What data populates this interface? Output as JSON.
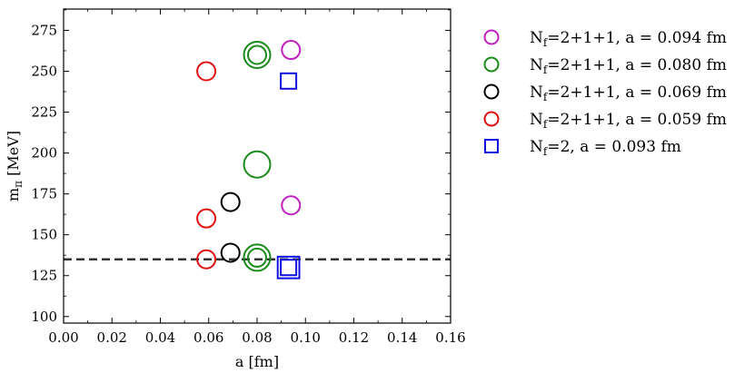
{
  "chart_data": {
    "type": "scatter",
    "xlabel": "a [fm]",
    "ylabel_main": "m",
    "ylabel_sub": "π",
    "ylabel_unit": " [MeV]",
    "xlim": [
      0.0,
      0.16
    ],
    "ylim": [
      96,
      288
    ],
    "x_ticks": [
      0.0,
      0.02,
      0.04,
      0.06,
      0.08,
      0.1,
      0.12,
      0.14,
      0.16
    ],
    "x_tick_labels": [
      "0.00",
      "0.02",
      "0.04",
      "0.06",
      "0.08",
      "0.10",
      "0.12",
      "0.14",
      "0.16"
    ],
    "y_ticks": [
      100,
      125,
      150,
      175,
      200,
      225,
      250,
      275
    ],
    "y_tick_labels": [
      "100",
      "125",
      "150",
      "175",
      "200",
      "225",
      "250",
      "275"
    ],
    "reference_line": {
      "y": 135,
      "style": "dashed",
      "color": "#333333"
    },
    "legend_placement": "right of plot",
    "series": [
      {
        "name": "N_f=2+1+1, a = 0.094 fm",
        "label_parts": [
          "N",
          "f",
          "=2+1+1, a = 0.094 fm"
        ],
        "marker": "circle",
        "color": "#c020c0",
        "points": [
          {
            "x": 0.094,
            "y": 263,
            "size": 1
          },
          {
            "x": 0.094,
            "y": 168,
            "size": 1
          }
        ]
      },
      {
        "name": "N_f=2+1+1, a = 0.080 fm",
        "label_parts": [
          "N",
          "f",
          "=2+1+1, a = 0.080 fm"
        ],
        "marker": "circle",
        "color": "#1a8a1a",
        "points": [
          {
            "x": 0.08,
            "y": 260,
            "size": 1.45
          },
          {
            "x": 0.08,
            "y": 260,
            "size": 1.0
          },
          {
            "x": 0.08,
            "y": 193,
            "size": 1.45
          },
          {
            "x": 0.08,
            "y": 136,
            "size": 1.45
          },
          {
            "x": 0.08,
            "y": 136,
            "size": 1.0
          }
        ]
      },
      {
        "name": "N_f=2+1+1, a = 0.069 fm",
        "label_parts": [
          "N",
          "f",
          "=2+1+1, a = 0.069 fm"
        ],
        "marker": "circle",
        "color": "#000000",
        "points": [
          {
            "x": 0.069,
            "y": 170,
            "size": 1
          },
          {
            "x": 0.069,
            "y": 139,
            "size": 1
          }
        ]
      },
      {
        "name": "N_f=2+1+1, a = 0.059 fm",
        "label_parts": [
          "N",
          "f",
          "=2+1+1, a = 0.059 fm"
        ],
        "marker": "circle",
        "color": "#e01010",
        "points": [
          {
            "x": 0.059,
            "y": 250,
            "size": 1
          },
          {
            "x": 0.059,
            "y": 160,
            "size": 1
          },
          {
            "x": 0.059,
            "y": 135,
            "size": 1
          }
        ]
      },
      {
        "name": "N_f=2, a = 0.093 fm",
        "label_parts": [
          "N",
          "f",
          "=2, a = 0.093 fm"
        ],
        "marker": "square",
        "color": "#1010e0",
        "points": [
          {
            "x": 0.093,
            "y": 244,
            "size": 1
          },
          {
            "x": 0.093,
            "y": 130,
            "size": 1.4
          },
          {
            "x": 0.093,
            "y": 130,
            "size": 1.0
          }
        ]
      }
    ]
  }
}
